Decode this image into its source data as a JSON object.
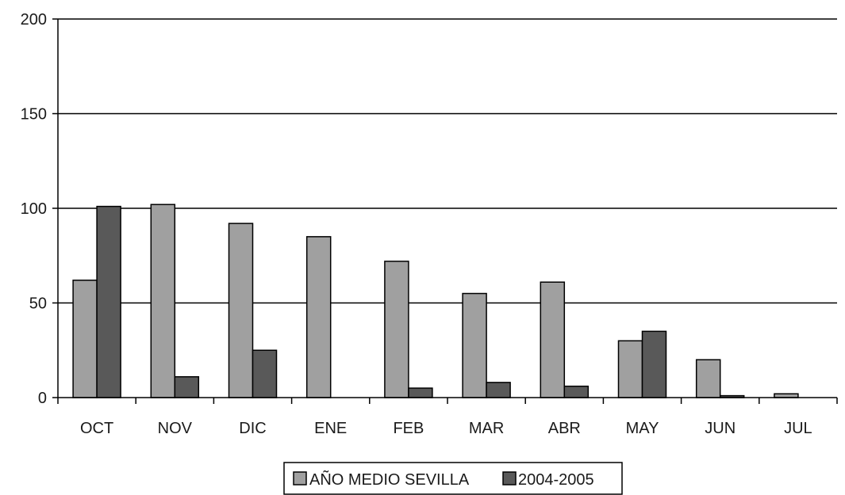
{
  "chart_data": {
    "type": "bar",
    "categories": [
      "OCT",
      "NOV",
      "DIC",
      "ENE",
      "FEB",
      "MAR",
      "ABR",
      "MAY",
      "JUN",
      "JUL"
    ],
    "series": [
      {
        "name": "AÑO MEDIO SEVILLA",
        "color": "#a0a0a0",
        "values": [
          62,
          102,
          92,
          85,
          72,
          55,
          61,
          30,
          20,
          2
        ]
      },
      {
        "name": "2004-2005",
        "color": "#595959",
        "values": [
          101,
          11,
          25,
          0,
          5,
          8,
          6,
          35,
          1,
          0
        ]
      }
    ],
    "ylim": [
      0,
      200
    ],
    "yticks": [
      "0",
      "50",
      "100",
      "150",
      "200"
    ],
    "grid": true,
    "legend_position": "bottom"
  }
}
